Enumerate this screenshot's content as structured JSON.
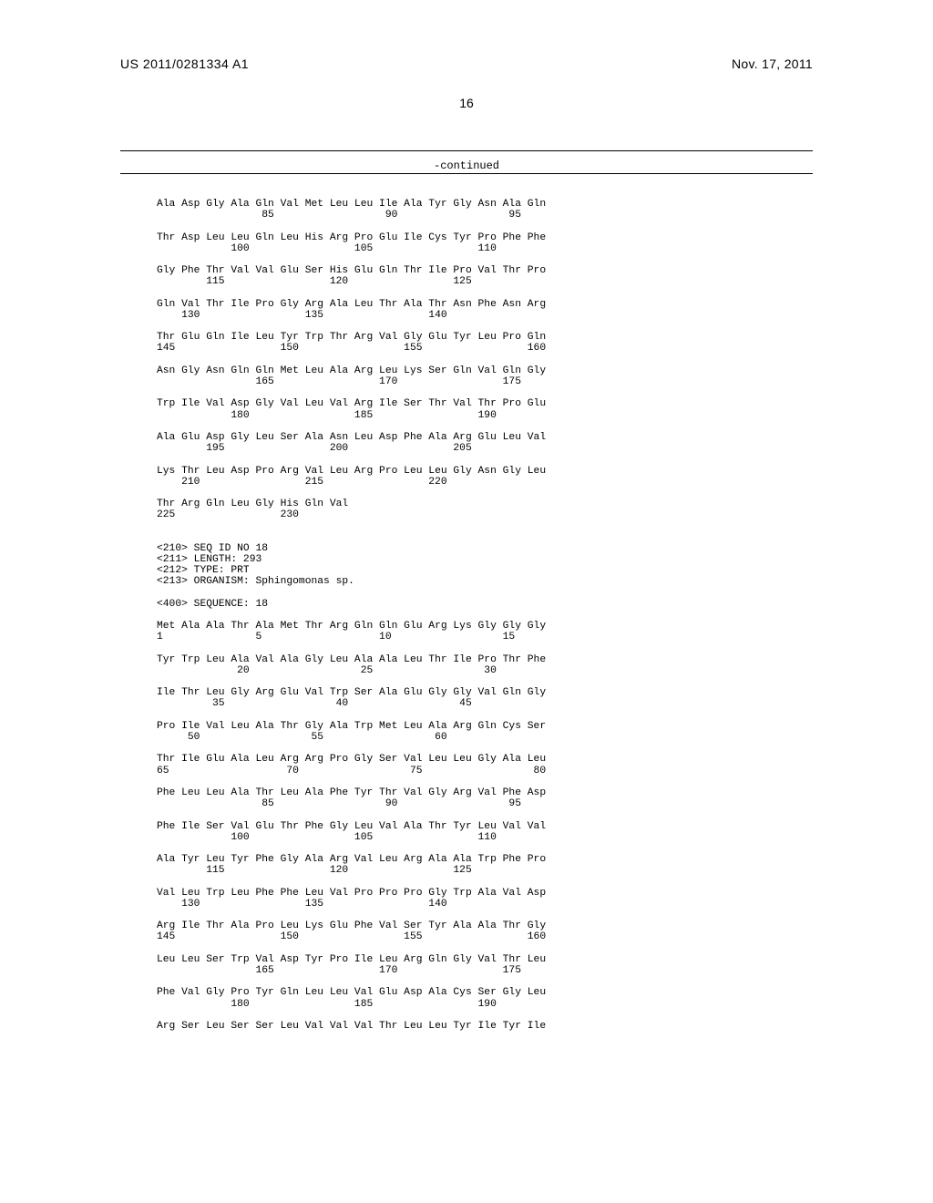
{
  "header": {
    "left": "US 2011/0281334 A1",
    "right": "Nov. 17, 2011",
    "page_number": "16"
  },
  "continued_label": "-continued",
  "colors": {
    "text": "#000000",
    "background": "#ffffff",
    "rule": "#000000"
  },
  "typography": {
    "mono_family": "Courier New",
    "mono_size_pt": 11.3,
    "sans_family": "Arial",
    "header_size_pt": 14
  },
  "sequence_blocks": [
    {
      "aa": "Ala Asp Gly Ala Gln Val Met Leu Leu Ile Ala Tyr Gly Asn Ala Gln",
      "nums": "                 85                  90                  95"
    },
    {
      "aa": "Thr Asp Leu Leu Gln Leu His Arg Pro Glu Ile Cys Tyr Pro Phe Phe",
      "nums": "            100                 105                 110"
    },
    {
      "aa": "Gly Phe Thr Val Val Glu Ser His Glu Gln Thr Ile Pro Val Thr Pro",
      "nums": "        115                 120                 125"
    },
    {
      "aa": "Gln Val Thr Ile Pro Gly Arg Ala Leu Thr Ala Thr Asn Phe Asn Arg",
      "nums": "    130                 135                 140"
    },
    {
      "aa": "Thr Glu Gln Ile Leu Tyr Trp Thr Arg Val Gly Glu Tyr Leu Pro Gln",
      "nums": "145                 150                 155                 160"
    },
    {
      "aa": "Asn Gly Asn Gln Gln Met Leu Ala Arg Leu Lys Ser Gln Val Gln Gly",
      "nums": "                165                 170                 175"
    },
    {
      "aa": "Trp Ile Val Asp Gly Val Leu Val Arg Ile Ser Thr Val Thr Pro Glu",
      "nums": "            180                 185                 190"
    },
    {
      "aa": "Ala Glu Asp Gly Leu Ser Ala Asn Leu Asp Phe Ala Arg Glu Leu Val",
      "nums": "        195                 200                 205"
    },
    {
      "aa": "Lys Thr Leu Asp Pro Arg Val Leu Arg Pro Leu Leu Gly Asn Gly Leu",
      "nums": "    210                 215                 220"
    },
    {
      "aa": "Thr Arg Gln Leu Gly His Gln Val",
      "nums": "225                 230"
    }
  ],
  "annotations": [
    "<210> SEQ ID NO 18",
    "<211> LENGTH: 293",
    "<212> TYPE: PRT",
    "<213> ORGANISM: Sphingomonas sp.",
    "",
    "<400> SEQUENCE: 18"
  ],
  "sequence_blocks_2": [
    {
      "aa": "Met Ala Ala Thr Ala Met Thr Arg Gln Gln Glu Arg Lys Gly Gly Gly",
      "nums": "1               5                   10                  15"
    },
    {
      "aa": "Tyr Trp Leu Ala Val Ala Gly Leu Ala Ala Leu Thr Ile Pro Thr Phe",
      "nums": "             20                  25                  30"
    },
    {
      "aa": "Ile Thr Leu Gly Arg Glu Val Trp Ser Ala Glu Gly Gly Val Gln Gly",
      "nums": "         35                  40                  45"
    },
    {
      "aa": "Pro Ile Val Leu Ala Thr Gly Ala Trp Met Leu Ala Arg Gln Cys Ser",
      "nums": "     50                  55                  60"
    },
    {
      "aa": "Thr Ile Glu Ala Leu Arg Arg Pro Gly Ser Val Leu Leu Gly Ala Leu",
      "nums": "65                   70                  75                  80"
    },
    {
      "aa": "Phe Leu Leu Ala Thr Leu Ala Phe Tyr Thr Val Gly Arg Val Phe Asp",
      "nums": "                 85                  90                  95"
    },
    {
      "aa": "Phe Ile Ser Val Glu Thr Phe Gly Leu Val Ala Thr Tyr Leu Val Val",
      "nums": "            100                 105                 110"
    },
    {
      "aa": "Ala Tyr Leu Tyr Phe Gly Ala Arg Val Leu Arg Ala Ala Trp Phe Pro",
      "nums": "        115                 120                 125"
    },
    {
      "aa": "Val Leu Trp Leu Phe Phe Leu Val Pro Pro Pro Gly Trp Ala Val Asp",
      "nums": "    130                 135                 140"
    },
    {
      "aa": "Arg Ile Thr Ala Pro Leu Lys Glu Phe Val Ser Tyr Ala Ala Thr Gly",
      "nums": "145                 150                 155                 160"
    },
    {
      "aa": "Leu Leu Ser Trp Val Asp Tyr Pro Ile Leu Arg Gln Gly Val Thr Leu",
      "nums": "                165                 170                 175"
    },
    {
      "aa": "Phe Val Gly Pro Tyr Gln Leu Leu Val Glu Asp Ala Cys Ser Gly Leu",
      "nums": "            180                 185                 190"
    },
    {
      "aa": "Arg Ser Leu Ser Ser Leu Val Val Val Thr Leu Leu Tyr Ile Tyr Ile",
      "nums": ""
    }
  ]
}
